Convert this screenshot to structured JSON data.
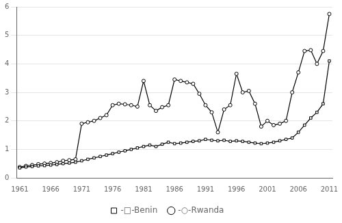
{
  "chart_data": {
    "type": "line",
    "x": [
      1961,
      1962,
      1963,
      1964,
      1965,
      1966,
      1967,
      1968,
      1969,
      1970,
      1971,
      1972,
      1973,
      1974,
      1975,
      1976,
      1977,
      1978,
      1979,
      1980,
      1981,
      1982,
      1983,
      1984,
      1985,
      1986,
      1987,
      1988,
      1989,
      1990,
      1991,
      1992,
      1993,
      1994,
      1995,
      1996,
      1997,
      1998,
      1999,
      2000,
      2001,
      2002,
      2003,
      2004,
      2005,
      2006,
      2007,
      2008,
      2009,
      2010,
      2011
    ],
    "series": [
      {
        "name": "-□-Benin",
        "color": "#000000",
        "marker": "square",
        "line_style": "solid",
        "values": [
          0.35,
          0.38,
          0.4,
          0.42,
          0.43,
          0.45,
          0.47,
          0.5,
          0.52,
          0.55,
          0.6,
          0.65,
          0.7,
          0.75,
          0.8,
          0.85,
          0.9,
          0.95,
          1.0,
          1.05,
          1.1,
          1.15,
          1.1,
          1.18,
          1.25,
          1.2,
          1.22,
          1.25,
          1.28,
          1.3,
          1.35,
          1.32,
          1.3,
          1.32,
          1.28,
          1.3,
          1.28,
          1.25,
          1.22,
          1.2,
          1.22,
          1.25,
          1.3,
          1.35,
          1.4,
          1.6,
          1.85,
          2.1,
          2.3,
          2.6,
          4.1
        ]
      },
      {
        "name": "-○-Rwanda",
        "color": "#000000",
        "marker": "circle",
        "line_style": "solid",
        "values": [
          0.38,
          0.42,
          0.45,
          0.48,
          0.5,
          0.52,
          0.55,
          0.6,
          0.62,
          0.65,
          1.9,
          1.95,
          2.0,
          2.1,
          2.2,
          2.55,
          2.6,
          2.58,
          2.55,
          2.5,
          3.4,
          2.55,
          2.35,
          2.48,
          2.55,
          3.45,
          3.4,
          3.35,
          3.3,
          2.95,
          2.55,
          2.3,
          1.6,
          2.4,
          2.55,
          3.65,
          3.0,
          3.05,
          2.6,
          1.8,
          2.0,
          1.85,
          1.9,
          2.0,
          3.0,
          3.7,
          4.45,
          4.48,
          4.0,
          4.45,
          5.75
        ]
      }
    ],
    "xlim": [
      1960.5,
      2011.5
    ],
    "xticks": [
      1961,
      1966,
      1971,
      1976,
      1981,
      1986,
      1991,
      1996,
      2001,
      2006,
      2011
    ],
    "ylim": [
      0,
      6
    ],
    "yticks": [
      0,
      1,
      2,
      3,
      4,
      5,
      6
    ],
    "grid": "y",
    "legend": "bottom"
  }
}
